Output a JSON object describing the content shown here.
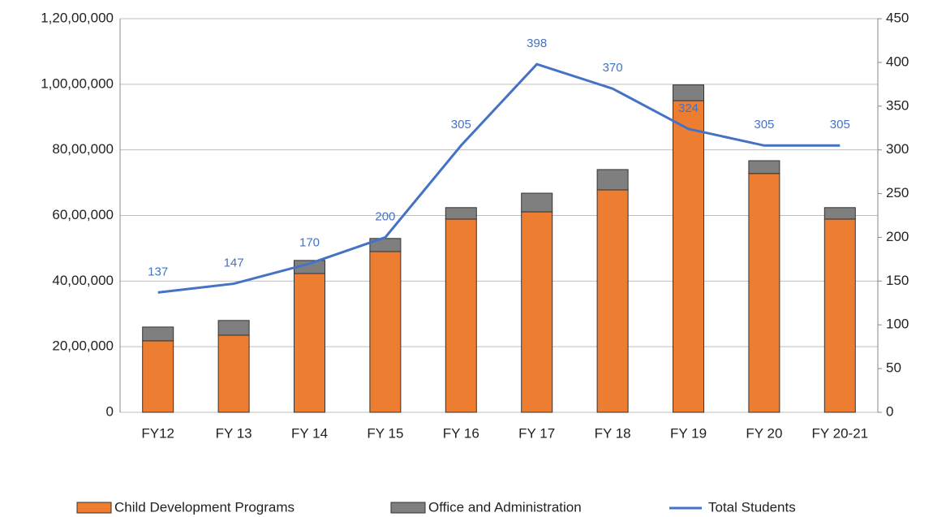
{
  "chart_data": {
    "type": "bar",
    "stacked": true,
    "grid": true,
    "legend": "bottom",
    "categories": [
      "FY12",
      "FY 13",
      "FY 14",
      "FY 15",
      "FY 16",
      "FY 17",
      "FY 18",
      "FY 19",
      "FY 20",
      "FY 20-21"
    ],
    "series": [
      {
        "name": "Child Development Programs",
        "color": "#ed7d31",
        "type": "bar",
        "values": [
          2180000,
          2350000,
          4230000,
          4900000,
          5890000,
          6110000,
          6780000,
          9500000,
          7280000,
          5890000
        ]
      },
      {
        "name": "Office and Administration",
        "color": "#7f7f7f",
        "type": "bar",
        "values": [
          420000,
          450000,
          400000,
          400000,
          350000,
          570000,
          620000,
          480000,
          390000,
          350000
        ]
      },
      {
        "name": "Total Students",
        "color": "#4472c4",
        "type": "line",
        "axis": "y2",
        "data_labels": true,
        "values": [
          137,
          147,
          170,
          200,
          305,
          398,
          370,
          324,
          305,
          305
        ]
      }
    ],
    "ylim": [
      0,
      12000000
    ],
    "yticks": [
      0,
      {
        "value": 2000000,
        "label": "20,00,000"
      },
      {
        "value": 4000000,
        "label": "40,00,000"
      },
      {
        "value": 6000000,
        "label": "60,00,000"
      },
      {
        "value": 8000000,
        "label": "80,00,000"
      },
      {
        "value": 10000000,
        "label": "1,00,00,000"
      },
      {
        "value": 12000000,
        "label": "1,20,00,000"
      }
    ],
    "y2lim": [
      0,
      450
    ],
    "y2ticks": [
      0,
      50,
      100,
      150,
      200,
      250,
      300,
      350,
      400,
      450
    ]
  }
}
